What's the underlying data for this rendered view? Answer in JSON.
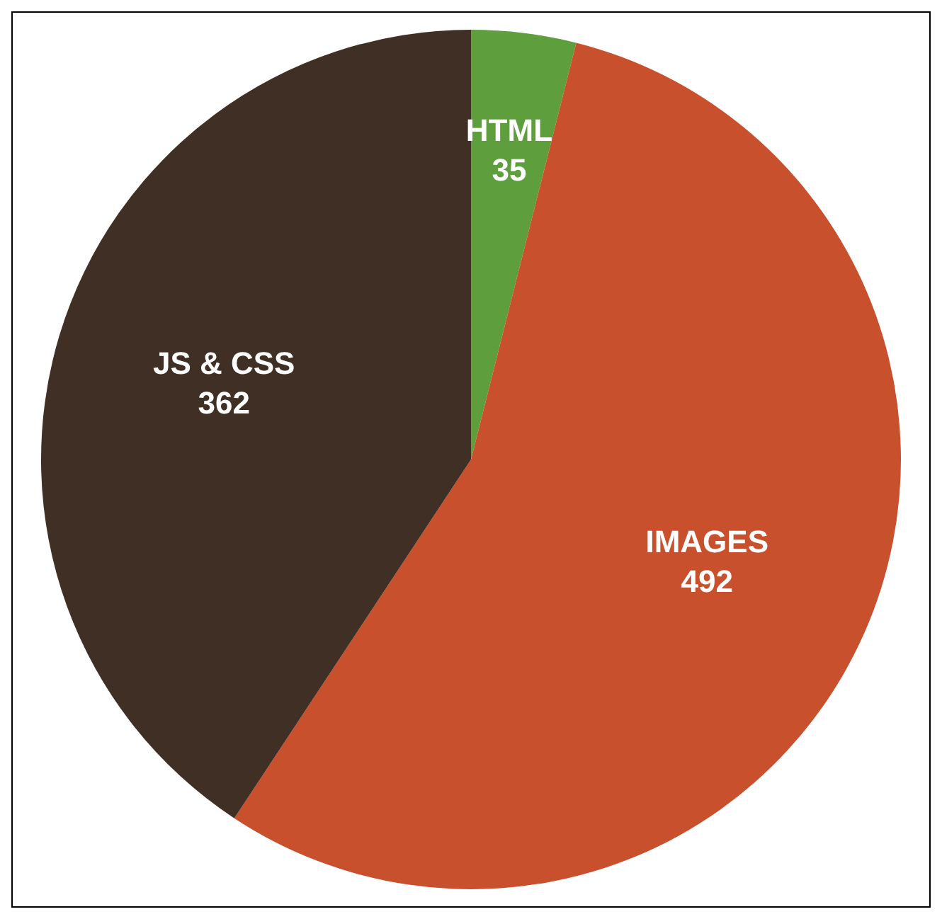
{
  "chart_data": {
    "type": "pie",
    "categories": [
      "HTML",
      "IMAGES",
      "JS & CSS"
    ],
    "values": [
      35,
      492,
      362
    ],
    "colors": [
      "#5e9e3c",
      "#c9502c",
      "#3f2f25"
    ],
    "data_labels": true
  }
}
